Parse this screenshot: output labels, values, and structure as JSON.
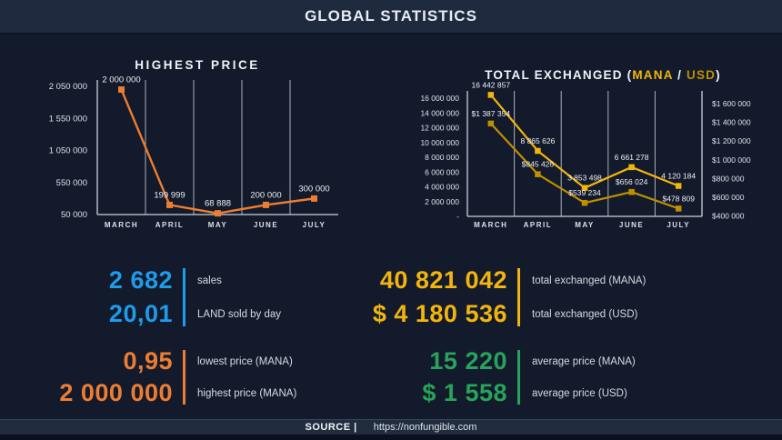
{
  "header": {
    "title": "GLOBAL STATISTICS"
  },
  "footer": {
    "source_label": "SOURCE |",
    "source_url": "https://nonfungible.com"
  },
  "colors": {
    "background": "#131A2B",
    "header_bar": "#1F2A3F",
    "accent_blue": "#1E9BE9",
    "accent_orange": "#ED7D31",
    "accent_gold": "#F2B50D",
    "accent_dark_gold": "#BF8F00",
    "accent_green": "#27A35B"
  },
  "chart_data": [
    {
      "type": "line",
      "title": "HIGHEST PRICE",
      "categories": [
        "MARCH",
        "APRIL",
        "MAY",
        "JUNE",
        "JULY"
      ],
      "series": [
        {
          "name": "highest price (MANA)",
          "color": "#ED7D31",
          "values": [
            2000000,
            199999,
            68888,
            200000,
            300000
          ],
          "labels": [
            "2 000 000",
            "199 999",
            "68 888",
            "200 000",
            "300 000"
          ]
        }
      ],
      "y_ticks": [
        {
          "label": "2 050 000",
          "value": 2050000
        },
        {
          "label": "1 550 000",
          "value": 1550000
        },
        {
          "label": "1 050 000",
          "value": 1050000
        },
        {
          "label": "550 000",
          "value": 550000
        },
        {
          "label": "50 000",
          "value": 50000
        }
      ],
      "ylim": [
        50000,
        2050000
      ],
      "grid": "vertical",
      "legend": "none"
    },
    {
      "type": "line",
      "title": "TOTAL EXCHANGED (MANA / USD)",
      "title_parts": {
        "prefix": "TOTAL EXCHANGED (",
        "mana": "MANA",
        "separator": " / ",
        "usd": "USD",
        "suffix": ")"
      },
      "categories": [
        "MARCH",
        "APRIL",
        "MAY",
        "JUNE",
        "JULY"
      ],
      "series": [
        {
          "name": "MANA",
          "axis": "left",
          "color": "#F2B50D",
          "values": [
            16442857,
            8865626,
            3853498,
            6661278,
            4120184
          ],
          "labels": [
            "16 442 857",
            "8 865 626",
            "3 853 498",
            "6 661 278",
            "4 120 184"
          ]
        },
        {
          "name": "USD",
          "axis": "right",
          "color": "#BF8F00",
          "values": [
            1387354,
            845426,
            539234,
            656024,
            478809
          ],
          "labels": [
            "$1 387 354",
            "$845 426",
            "$539 234",
            "$656 024",
            "$478 809"
          ]
        }
      ],
      "left_ticks": [
        {
          "label": "16 000 000",
          "value": 16000000
        },
        {
          "label": "14 000 000",
          "value": 14000000
        },
        {
          "label": "12 000 000",
          "value": 12000000
        },
        {
          "label": "10 000 000",
          "value": 10000000
        },
        {
          "label": "8 000 000",
          "value": 8000000
        },
        {
          "label": "6 000 000",
          "value": 6000000
        },
        {
          "label": "4 000 000",
          "value": 4000000
        },
        {
          "label": "2 000 000",
          "value": 2000000
        },
        {
          "label": "-",
          "value": 0
        }
      ],
      "right_ticks": [
        {
          "label": "$1 600 000",
          "value": 1600000
        },
        {
          "label": "$1 400 000",
          "value": 1400000
        },
        {
          "label": "$1 200 000",
          "value": 1200000
        },
        {
          "label": "$1 000 000",
          "value": 1000000
        },
        {
          "label": "$800 000",
          "value": 800000
        },
        {
          "label": "$600 000",
          "value": 600000
        },
        {
          "label": "$400 000",
          "value": 400000
        }
      ],
      "ylim_left": [
        0,
        16000000
      ],
      "ylim_right": [
        400000,
        1600000
      ],
      "grid": "vertical",
      "legend": "none"
    }
  ],
  "stats": {
    "groups": [
      {
        "accent": "#1E9BE9",
        "rows": [
          {
            "value": "2 682",
            "label": "sales"
          },
          {
            "value": "20,01",
            "label": "LAND sold by day"
          }
        ]
      },
      {
        "accent": "#ED7D31",
        "rows": [
          {
            "value": "0,95",
            "label": "lowest price (MANA)"
          },
          {
            "value": "2 000 000",
            "label": "highest price (MANA)"
          }
        ]
      },
      {
        "accent": "#F2B50D",
        "rows": [
          {
            "value": "40 821 042",
            "label": "total exchanged (MANA)"
          },
          {
            "value": "$ 4 180 536",
            "label": "total exchanged (USD)"
          }
        ]
      },
      {
        "accent": "#27A35B",
        "rows": [
          {
            "value": "15 220",
            "label": "average price (MANA)"
          },
          {
            "value": "$ 1 558",
            "label": "average price (USD)"
          }
        ]
      }
    ]
  }
}
